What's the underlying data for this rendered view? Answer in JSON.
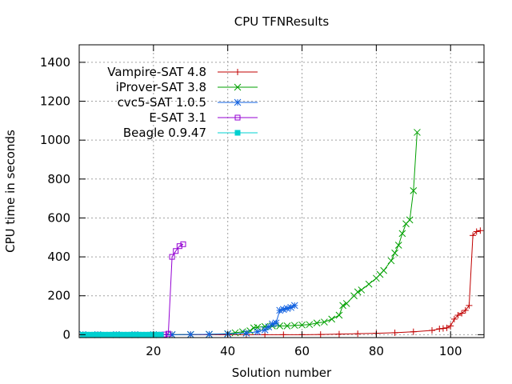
{
  "chart_data": {
    "type": "line",
    "title": "CPU TFNResults",
    "xlabel": "Solution number",
    "ylabel": "CPU time in seconds",
    "xlim": [
      0,
      109
    ],
    "ylim": [
      -15,
      1490
    ],
    "xticks": [
      20,
      40,
      60,
      80,
      100
    ],
    "yticks": [
      0,
      200,
      400,
      600,
      800,
      1000,
      1200,
      1400
    ],
    "grid": true,
    "legend_position": "top-left",
    "series": [
      {
        "name": "Vampire-SAT 4.8",
        "color": "#c00000",
        "marker": "plus",
        "x": [
          1,
          5,
          10,
          15,
          20,
          25,
          30,
          35,
          40,
          45,
          50,
          55,
          60,
          65,
          70,
          75,
          80,
          85,
          90,
          95,
          97,
          98,
          99,
          100,
          101,
          102,
          103,
          104,
          105,
          106,
          107,
          108
        ],
        "y": [
          0,
          0,
          0,
          0,
          0,
          0,
          0,
          0,
          0,
          0,
          0,
          0,
          0,
          1,
          3,
          5,
          7,
          10,
          15,
          22,
          30,
          32,
          35,
          45,
          80,
          100,
          110,
          125,
          150,
          510,
          530,
          535
        ]
      },
      {
        "name": "iProver-SAT 3.8",
        "color": "#00a000",
        "marker": "x",
        "x": [
          1,
          5,
          10,
          15,
          20,
          25,
          30,
          35,
          40,
          42,
          44,
          46,
          47,
          48,
          50,
          52,
          54,
          56,
          58,
          60,
          62,
          64,
          66,
          68,
          70,
          71,
          72,
          74,
          75,
          76,
          78,
          80,
          81,
          82,
          84,
          85,
          86,
          87,
          88,
          89,
          90,
          91
        ],
        "y": [
          0,
          0,
          0,
          0,
          0,
          0,
          1,
          2,
          5,
          10,
          15,
          20,
          35,
          38,
          42,
          45,
          45,
          45,
          48,
          50,
          52,
          60,
          65,
          80,
          100,
          150,
          160,
          200,
          220,
          230,
          260,
          290,
          310,
          330,
          380,
          420,
          460,
          520,
          570,
          590,
          740,
          1040
        ]
      },
      {
        "name": "cvc5-SAT 1.0.5",
        "color": "#1060e0",
        "marker": "star",
        "x": [
          1,
          5,
          10,
          15,
          20,
          25,
          30,
          35,
          40,
          45,
          48,
          50,
          51,
          52,
          53,
          54,
          55,
          56,
          57,
          58
        ],
        "y": [
          0,
          0,
          0,
          0,
          0,
          0,
          1,
          2,
          4,
          8,
          15,
          25,
          40,
          55,
          60,
          125,
          130,
          135,
          140,
          150
        ]
      },
      {
        "name": "E-SAT 3.1",
        "color": "#9400d3",
        "marker": "square",
        "x": [
          22,
          23,
          24,
          25,
          26,
          27,
          28
        ],
        "y": [
          0,
          1,
          5,
          400,
          430,
          455,
          465
        ]
      },
      {
        "name": "Beagle 0.9.47",
        "color": "#00d0d0",
        "marker": "filled-square",
        "x": [
          1,
          2,
          3,
          4,
          5,
          6,
          7,
          8,
          9,
          10,
          11,
          12,
          13,
          14,
          15,
          16,
          17,
          18,
          19,
          20,
          21,
          22
        ],
        "y": [
          0,
          0,
          0,
          0,
          0,
          0,
          0,
          0,
          0,
          0,
          0,
          0,
          0,
          0,
          0,
          0,
          0,
          0,
          0,
          0,
          0,
          0
        ]
      }
    ]
  }
}
